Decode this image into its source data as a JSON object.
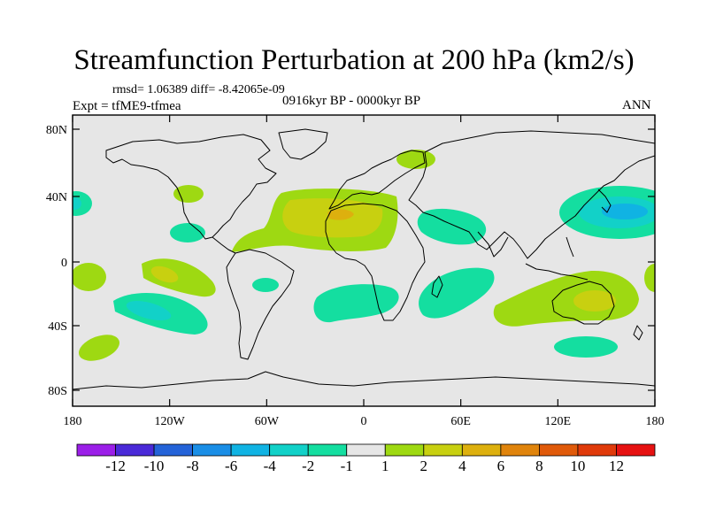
{
  "title": "Streamfunction Perturbation at 200 hPa (km2/s)",
  "stats": "rmsd= 1.06389 diff= -8.42065e-09",
  "experiment": "Expt = tfME9-tfmea",
  "period": "0916kyr BP - 0000kyr BP",
  "season": "ANN",
  "map_data": {
    "projection": "cylindrical equidistant",
    "lon_range": [
      -180,
      180
    ],
    "lat_range": [
      -90,
      90
    ],
    "lat_ticks": [
      "80N",
      "40N",
      "0",
      "40S",
      "80S"
    ],
    "lon_ticks": [
      "180",
      "120W",
      "60W",
      "0",
      "60E",
      "120E",
      "180"
    ],
    "background_level": "-1 to 1",
    "features": [
      {
        "region": "North Atlantic / North Africa",
        "center_lon": -5,
        "center_lat": 25,
        "level": "4 to 6",
        "peak": "6 to 8"
      },
      {
        "region": "Northwest Pacific",
        "center_lon": 158,
        "center_lat": 33,
        "level": "-4 to -2"
      },
      {
        "region": "Northeast Pacific",
        "center_lon": -175,
        "center_lat": 36,
        "level": "-2 to -1"
      },
      {
        "region": "Middle East",
        "center_lon": 45,
        "center_lat": 27,
        "level": "-2 to -1"
      },
      {
        "region": "North Europe",
        "center_lon": 27,
        "center_lat": 61,
        "level": "1 to 2"
      },
      {
        "region": "South Pacific subtropics",
        "center_lon": -130,
        "center_lat": -10,
        "level": "2 to 4"
      },
      {
        "region": "South Pacific midlatitudes",
        "center_lon": -135,
        "center_lat": -30,
        "level": "-4 to -2"
      },
      {
        "region": "South Atlantic",
        "center_lon": -5,
        "center_lat": -28,
        "level": "-2 to -1"
      },
      {
        "region": "Southwest Indian Ocean",
        "center_lon": 52,
        "center_lat": -15,
        "level": "-2 to -1"
      },
      {
        "region": "Australia",
        "center_lon": 135,
        "center_lat": -25,
        "level": "4 to 6"
      },
      {
        "region": "Southern Ocean south of Australia",
        "center_lon": 135,
        "center_lat": -52,
        "level": "-2 to -1"
      }
    ]
  },
  "colorbar": {
    "labels": [
      "-12",
      "-10",
      "-8",
      "-6",
      "-4",
      "-2",
      "-1",
      "1",
      "2",
      "4",
      "6",
      "8",
      "10",
      "12"
    ],
    "colors": [
      "#9b1fe8",
      "#4a2ad8",
      "#2463d8",
      "#1a8ee6",
      "#10b3e3",
      "#12d1c8",
      "#14dea0",
      "#e6e6e6",
      "#9ed912",
      "#c8d010",
      "#ddb00e",
      "#e0840c",
      "#e05a0a",
      "#e03a0a",
      "#e61212"
    ]
  },
  "colors": {
    "land_fill": "#e6e6e6",
    "coastline": "#000000"
  }
}
